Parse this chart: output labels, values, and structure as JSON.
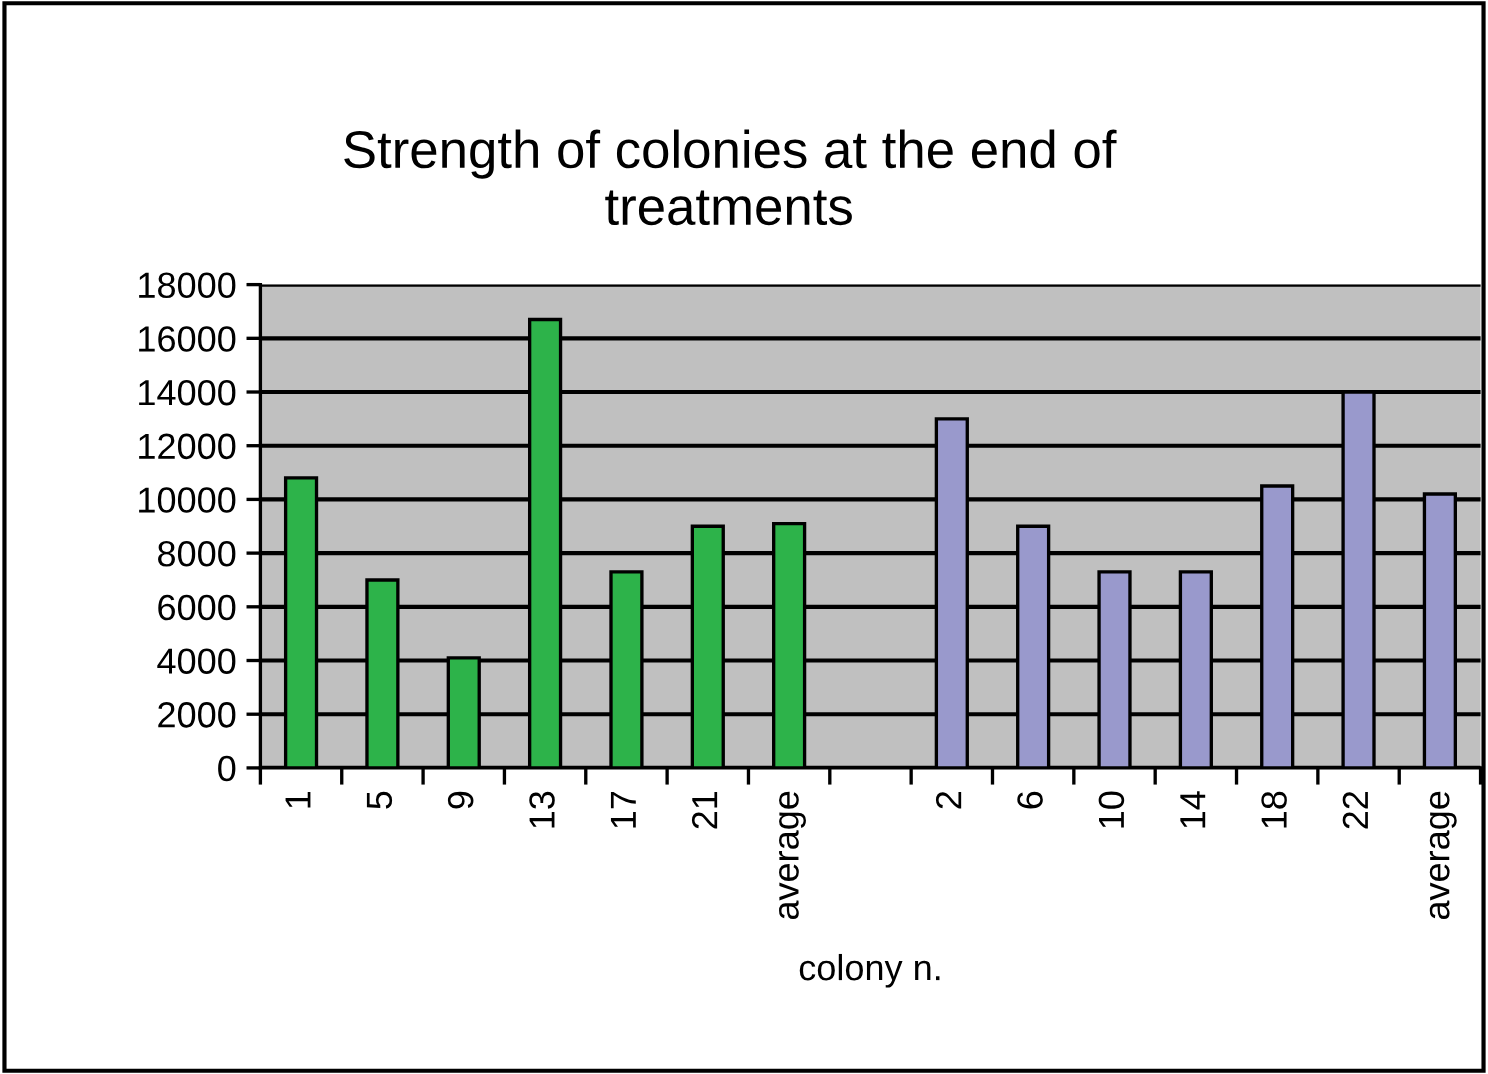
{
  "chart_data": {
    "type": "bar",
    "title": "Strength of colonies at the end of\ntreatments",
    "xlabel": "colony n.",
    "categories": [
      "1",
      "5",
      "9",
      "13",
      "17",
      "21",
      "average",
      null,
      "2",
      "6",
      "10",
      "14",
      "18",
      "22",
      "average"
    ],
    "series": [
      {
        "color": "#2db34a",
        "values": [
          10800,
          7000,
          4100,
          16700,
          7300,
          9000,
          9100,
          null,
          null,
          null,
          null,
          null,
          null,
          null,
          null
        ]
      },
      {
        "color": "#9999cc",
        "values": [
          null,
          null,
          null,
          null,
          null,
          null,
          null,
          null,
          13000,
          9000,
          7300,
          7300,
          10500,
          14000,
          10200
        ]
      }
    ],
    "ylim": [
      0,
      18000
    ],
    "yticks": [
      0,
      2000,
      4000,
      6000,
      8000,
      10000,
      12000,
      14000,
      16000,
      18000
    ],
    "grid": "y",
    "legend": false
  }
}
